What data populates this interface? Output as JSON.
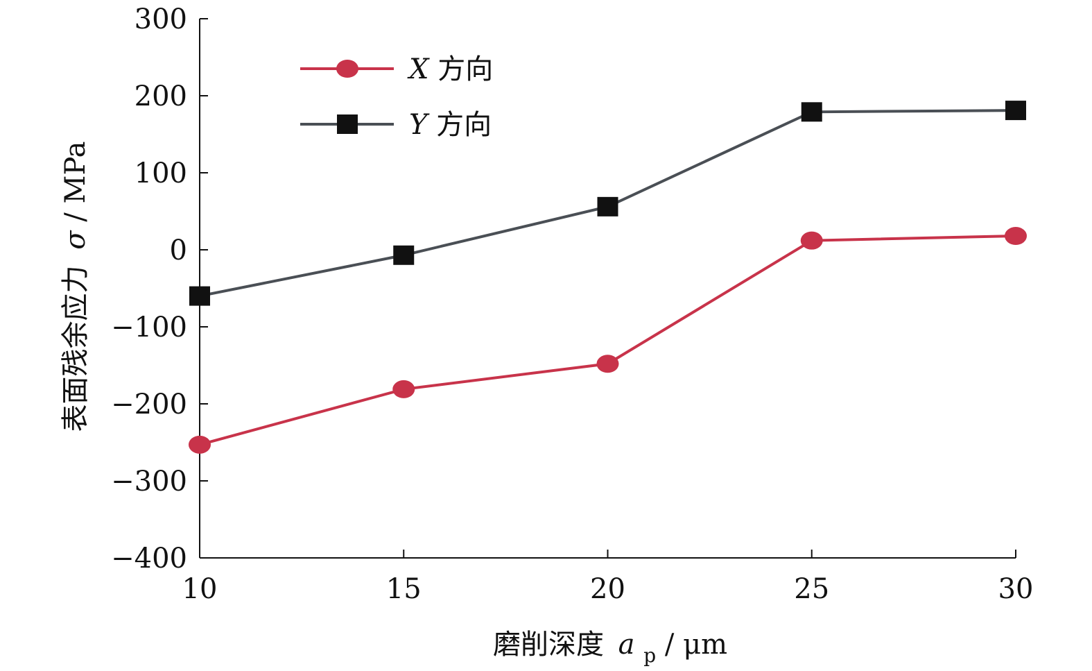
{
  "chart_data": {
    "type": "line",
    "title": "",
    "xlabel": "磨削深度",
    "xlabel_symbol": "a",
    "xlabel_subscript": "p",
    "xlabel_unit": " / μm",
    "ylabel": "表面残余应力",
    "ylabel_symbol": "σ",
    "ylabel_unit": " / MPa",
    "x": [
      10,
      15,
      20,
      25,
      30
    ],
    "xlim": [
      10,
      30
    ],
    "ylim": [
      -400,
      300
    ],
    "x_ticks": [
      "10",
      "15",
      "20",
      "25",
      "30"
    ],
    "y_ticks": [
      "300",
      "200",
      "100",
      "0",
      "−100",
      "−200",
      "−300",
      "−400"
    ],
    "y_tick_values": [
      300,
      200,
      100,
      0,
      -100,
      -200,
      -300,
      -400
    ],
    "grid": false,
    "legend_position": "top-left",
    "series": [
      {
        "name": "X",
        "name_suffix": " 方向",
        "marker": "circle",
        "color": "#c8334a",
        "values": [
          -253,
          -181,
          -148,
          12,
          18
        ]
      },
      {
        "name": "Y",
        "name_suffix": " 方向",
        "marker": "square",
        "color": "#4a4f55",
        "values": [
          -60,
          -7,
          56,
          179,
          181
        ]
      }
    ]
  }
}
